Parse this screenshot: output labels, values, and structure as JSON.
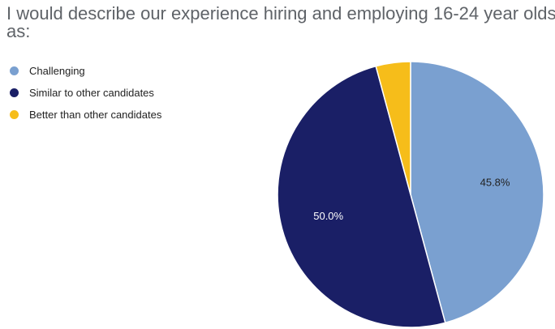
{
  "chart_data": {
    "type": "pie",
    "title": "I would describe our experience hiring and employing 16-24 year olds as:",
    "legend_position": "top-left",
    "slices": [
      {
        "name": "Challenging",
        "value": 45.8,
        "label": "45.8%",
        "color": "#7aa0d0",
        "label_color": "#222222"
      },
      {
        "name": "Similar to other candidates",
        "value": 50.0,
        "label": "50.0%",
        "color": "#1a1f66",
        "label_color": "#ffffff"
      },
      {
        "name": "Better than other candidates",
        "value": 4.2,
        "label": "",
        "color": "#f6bd1a",
        "label_color": "#222222"
      }
    ]
  }
}
